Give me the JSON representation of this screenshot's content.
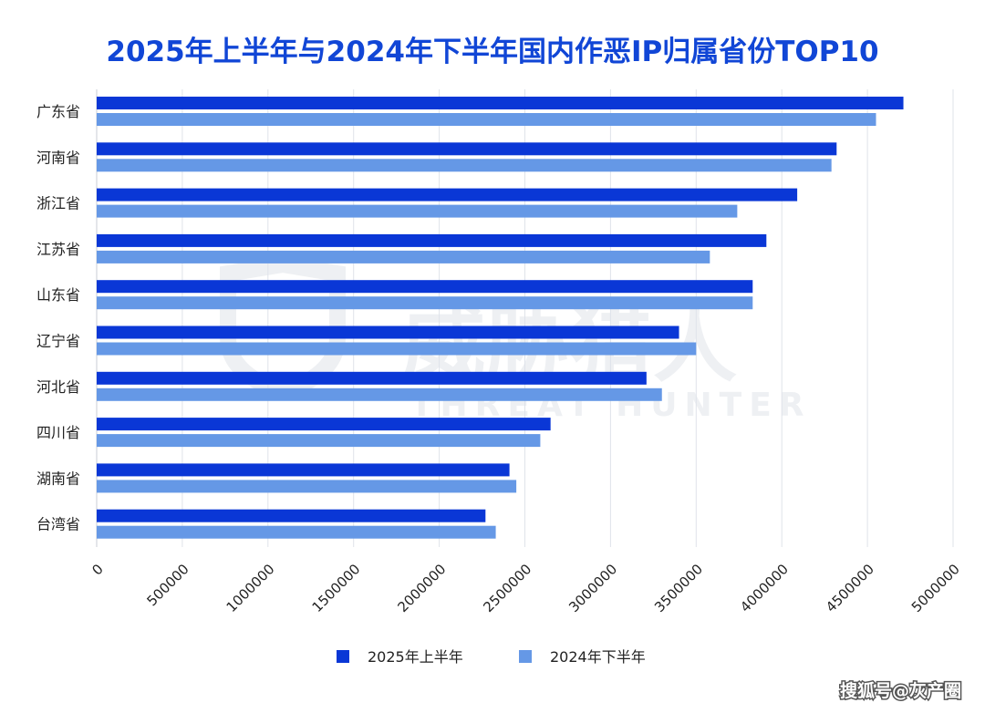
{
  "colors": {
    "background": "#ffffff",
    "title": "#1146d6",
    "series_2025": "#0a37d6",
    "series_2024": "#6598e6",
    "grid": "#dfe3ea",
    "watermark": "#eef0f3"
  },
  "watermark": {
    "cn": "威胁猎人",
    "en": "THREAT HUNTER",
    "icon": "shield-icon"
  },
  "credit": "搜狐号@灰产圈",
  "chart_data": {
    "type": "bar",
    "orientation": "horizontal",
    "title": "2025年上半年与2024年下半年国内作恶IP归属省份TOP10",
    "xlabel": "",
    "ylabel": "",
    "categories": [
      "广东省",
      "河南省",
      "浙江省",
      "江苏省",
      "山东省",
      "辽宁省",
      "河北省",
      "四川省",
      "湖南省",
      "台湾省"
    ],
    "series": [
      {
        "name": "2025年上半年",
        "values": [
          4710000,
          4320000,
          4090000,
          3910000,
          3830000,
          3400000,
          3210000,
          2650000,
          2410000,
          2270000
        ]
      },
      {
        "name": "2024年下半年",
        "values": [
          4550000,
          4290000,
          3740000,
          3580000,
          3830000,
          3500000,
          3300000,
          2590000,
          2450000,
          2330000
        ]
      }
    ],
    "xlim": [
      0,
      5000000
    ],
    "xticks": [
      0,
      500000,
      1000000,
      1500000,
      2000000,
      2500000,
      3000000,
      3500000,
      4000000,
      4500000,
      5000000
    ],
    "xtick_labels": [
      "0",
      "500000",
      "1000000",
      "1500000",
      "2000000",
      "2500000",
      "3000000",
      "3500000",
      "4000000",
      "4500000",
      "5000000"
    ],
    "tick_label_rotation": -45,
    "grid": "vertical",
    "legend": "bottom"
  }
}
